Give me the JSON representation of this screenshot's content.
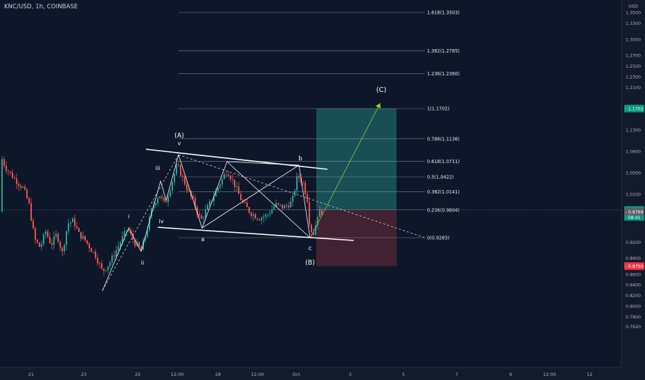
{
  "header": {
    "symbol": "KNC/USD, 1h, COINBASE",
    "currency": "USD"
  },
  "price_axis": {
    "ticks": [
      "1.3500",
      "1.3300",
      "1.3000",
      "1.2700",
      "1.2500",
      "1.2300",
      "1.2100",
      "1.1300",
      "1.0900",
      "1.0500",
      "1.0100",
      "0.9200",
      "0.8900",
      "0.8600",
      "0.8400",
      "0.8200",
      "0.8000",
      "0.7800",
      "0.7620"
    ],
    "tick_values": [
      1.35,
      1.33,
      1.3,
      1.27,
      1.25,
      1.23,
      1.21,
      1.13,
      1.09,
      1.05,
      1.01,
      0.92,
      0.89,
      0.86,
      0.84,
      0.82,
      0.8,
      0.78,
      0.762
    ]
  },
  "time_axis": {
    "labels": [
      "21",
      "23",
      "25",
      "12:00",
      "28",
      "12:00",
      "Oct",
      "3",
      "5",
      "7",
      "9",
      "12:00",
      "12"
    ]
  },
  "price_tags": {
    "target": "1.1702",
    "current": "0.9802",
    "countdown": "58:41",
    "prev": "0.9769",
    "stop": "0.8750",
    "colors": {
      "target": "#089981",
      "current": "#089981",
      "stop": "#f23645",
      "prev": "#5d606b"
    }
  },
  "fib_levels": [
    {
      "label": "1.618(1.3503)",
      "value": 1.3503
    },
    {
      "label": "1.382(1.2785)",
      "value": 1.2785
    },
    {
      "label": "1.236(1.2360)",
      "value": 1.236
    },
    {
      "label": "1(1.1702)",
      "value": 1.1702
    },
    {
      "label": "0.786(1.1136)",
      "value": 1.1136
    },
    {
      "label": "0.618(1.0711)",
      "value": 1.0711
    },
    {
      "label": "0.5(1.0422)",
      "value": 1.0422
    },
    {
      "label": "0.382(1.0141)",
      "value": 1.0141
    },
    {
      "label": "0.236(0.9804)",
      "value": 0.9804
    },
    {
      "label": "0(0.9283)",
      "value": 0.9283
    }
  ],
  "wave_labels": {
    "i": "i",
    "ii": "ii",
    "iii": "iii",
    "iv": "iv",
    "v": "v",
    "A": "(A)",
    "a": "a",
    "b": "b",
    "c": "c",
    "B": "(B)",
    "C": "(C)"
  },
  "position": {
    "entry": 0.9802,
    "target": 1.1702,
    "stop": 0.875
  },
  "colors": {
    "background": "#0e1729",
    "candle_up": "#26a69a",
    "candle_down": "#ef5350",
    "profit_zone": "#1b5f62",
    "loss_zone": "#4a2534",
    "projection": "#9acd32"
  }
}
